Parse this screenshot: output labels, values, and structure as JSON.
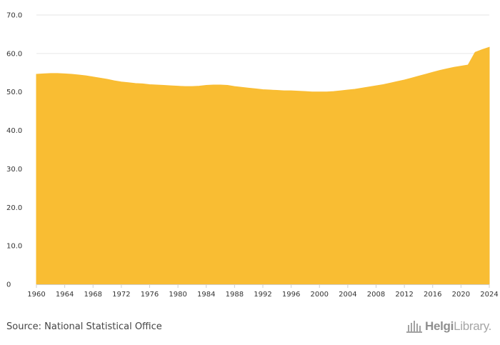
{
  "chart_data": {
    "type": "area",
    "title": "",
    "xlabel": "",
    "ylabel": "",
    "xlim": [
      1960,
      2024
    ],
    "ylim": [
      0,
      70
    ],
    "grid": true,
    "fill_color": "#F9BD33",
    "grid_color": "#e6e6e6",
    "axis_color": "#cfcfcf",
    "x_ticks": [
      1960,
      1964,
      1968,
      1972,
      1976,
      1980,
      1984,
      1988,
      1992,
      1996,
      2000,
      2004,
      2008,
      2012,
      2016,
      2020,
      2024
    ],
    "x_tick_labels": [
      "1960",
      "1964",
      "1968",
      "1972",
      "1976",
      "1980",
      "1984",
      "1988",
      "1992",
      "1996",
      "2000",
      "2004",
      "2008",
      "2012",
      "2016",
      "2020",
      "2024"
    ],
    "y_ticks": [
      0,
      10,
      20,
      30,
      40,
      50,
      60,
      70
    ],
    "y_tick_labels": [
      "0",
      "10.0",
      "20.0",
      "30.0",
      "40.0",
      "50.0",
      "60.0",
      "70.0"
    ],
    "series": [
      {
        "name": "Value",
        "x": [
          1960,
          1961,
          1962,
          1963,
          1964,
          1965,
          1966,
          1967,
          1968,
          1969,
          1970,
          1971,
          1972,
          1973,
          1974,
          1975,
          1976,
          1977,
          1978,
          1979,
          1980,
          1981,
          1982,
          1983,
          1984,
          1985,
          1986,
          1987,
          1988,
          1989,
          1990,
          1991,
          1992,
          1993,
          1994,
          1995,
          1996,
          1997,
          1998,
          1999,
          2000,
          2001,
          2002,
          2003,
          2004,
          2005,
          2006,
          2007,
          2008,
          2009,
          2010,
          2011,
          2012,
          2013,
          2014,
          2015,
          2016,
          2017,
          2018,
          2019,
          2020,
          2021,
          2022,
          2023,
          2024
        ],
        "values": [
          54.6,
          54.7,
          54.8,
          54.8,
          54.7,
          54.6,
          54.4,
          54.2,
          53.9,
          53.6,
          53.3,
          52.9,
          52.6,
          52.4,
          52.2,
          52.1,
          51.9,
          51.8,
          51.7,
          51.6,
          51.5,
          51.4,
          51.4,
          51.5,
          51.7,
          51.8,
          51.8,
          51.7,
          51.4,
          51.2,
          51.0,
          50.8,
          50.6,
          50.5,
          50.4,
          50.3,
          50.3,
          50.2,
          50.1,
          50.0,
          50.0,
          50.0,
          50.1,
          50.3,
          50.5,
          50.7,
          51.0,
          51.3,
          51.6,
          51.9,
          52.3,
          52.7,
          53.1,
          53.6,
          54.1,
          54.6,
          55.1,
          55.6,
          56.0,
          56.4,
          56.7,
          57.0,
          60.3,
          61.0,
          61.6
        ]
      }
    ]
  },
  "footer": {
    "source": "Source: National Statistical Office",
    "logo_bold": "Helgi",
    "logo_light": "Library."
  }
}
